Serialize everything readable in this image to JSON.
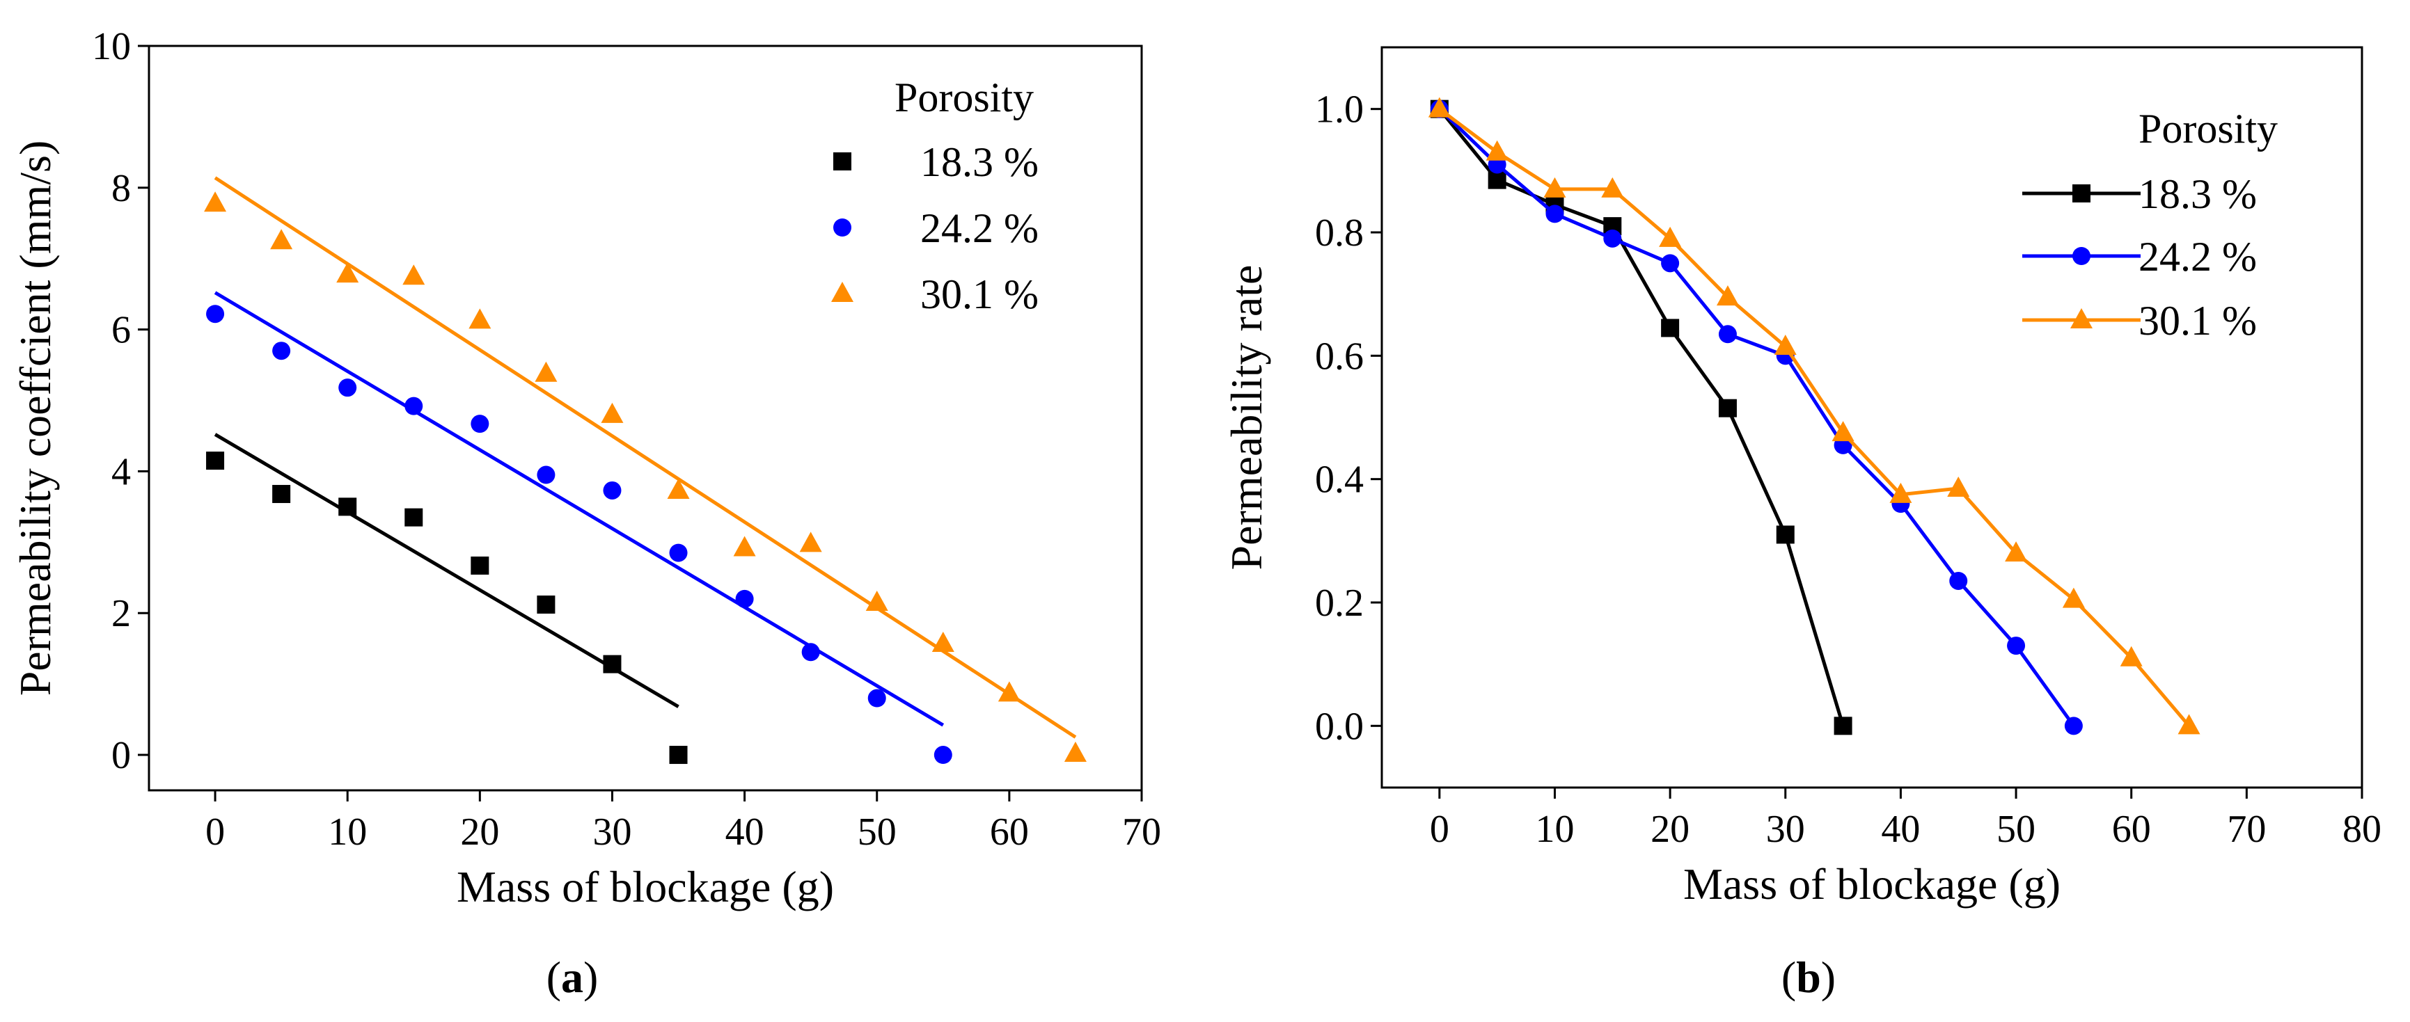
{
  "chart_data": [
    {
      "type": "scatter",
      "panel_label": "a",
      "title": "",
      "xlabel": "Mass of blockage (g)",
      "ylabel": "Permeability coeffcient (mm/s)",
      "xlim": [
        -5,
        70
      ],
      "ylim": [
        -0.5,
        10
      ],
      "xticks": [
        0,
        10,
        20,
        30,
        40,
        50,
        60,
        70
      ],
      "yticks": [
        0,
        2,
        4,
        6,
        8,
        10
      ],
      "legend_title": "Porosity",
      "legend_position": "top-right",
      "series": [
        {
          "name": "18.3 %",
          "color": "#000000",
          "marker": "square",
          "x": [
            0,
            5,
            10,
            15,
            20,
            25,
            30,
            35
          ],
          "y": [
            4.15,
            3.68,
            3.5,
            3.35,
            2.67,
            2.12,
            1.28,
            0.0
          ],
          "fit": {
            "x": [
              0,
              35
            ],
            "y": [
              4.52,
              0.68
            ]
          }
        },
        {
          "name": "24.2 %",
          "color": "#0000ff",
          "marker": "circle",
          "x": [
            0,
            5,
            10,
            15,
            20,
            25,
            30,
            35,
            40,
            45,
            50,
            55
          ],
          "y": [
            6.22,
            5.7,
            5.18,
            4.92,
            4.67,
            3.95,
            3.73,
            2.85,
            2.2,
            1.45,
            0.8,
            0.0
          ],
          "fit": {
            "x": [
              0,
              55
            ],
            "y": [
              6.52,
              0.42
            ]
          }
        },
        {
          "name": "30.1 %",
          "color": "#ff8c00",
          "marker": "triangle",
          "x": [
            0,
            5,
            10,
            15,
            20,
            25,
            30,
            35,
            40,
            45,
            50,
            55,
            60,
            65
          ],
          "y": [
            7.78,
            7.25,
            6.78,
            6.75,
            6.13,
            5.38,
            4.8,
            3.73,
            2.92,
            2.98,
            2.15,
            1.57,
            0.87,
            0.02
          ],
          "fit": {
            "x": [
              0,
              65
            ],
            "y": [
              8.14,
              0.25
            ]
          }
        }
      ]
    },
    {
      "type": "line",
      "panel_label": "b",
      "title": "",
      "xlabel": "Mass of blockage (g)",
      "ylabel": "Permeability rate",
      "xlim": [
        -5,
        80
      ],
      "ylim": [
        -0.1,
        1.1
      ],
      "xticks": [
        0,
        10,
        20,
        30,
        40,
        50,
        60,
        70,
        80
      ],
      "yticks": [
        0.0,
        0.2,
        0.4,
        0.6,
        0.8,
        1.0
      ],
      "legend_title": "Porosity",
      "legend_position": "top-right",
      "series": [
        {
          "name": "18.3 %",
          "color": "#000000",
          "marker": "square",
          "x": [
            0,
            5,
            10,
            15,
            20,
            25,
            30,
            35
          ],
          "y": [
            1.0,
            0.885,
            0.845,
            0.81,
            0.645,
            0.515,
            0.31,
            0.0
          ]
        },
        {
          "name": "24.2 %",
          "color": "#0000ff",
          "marker": "circle",
          "x": [
            0,
            5,
            10,
            15,
            20,
            25,
            30,
            35,
            40,
            45,
            50,
            55
          ],
          "y": [
            1.0,
            0.91,
            0.83,
            0.79,
            0.75,
            0.635,
            0.6,
            0.455,
            0.36,
            0.235,
            0.13,
            0.0
          ]
        },
        {
          "name": "30.1 %",
          "color": "#ff8c00",
          "marker": "triangle",
          "x": [
            0,
            5,
            10,
            15,
            20,
            25,
            30,
            35,
            40,
            45,
            50,
            55,
            60,
            65
          ],
          "y": [
            1.0,
            0.93,
            0.87,
            0.87,
            0.79,
            0.695,
            0.615,
            0.475,
            0.375,
            0.385,
            0.28,
            0.205,
            0.11,
            0.0
          ]
        }
      ]
    }
  ]
}
